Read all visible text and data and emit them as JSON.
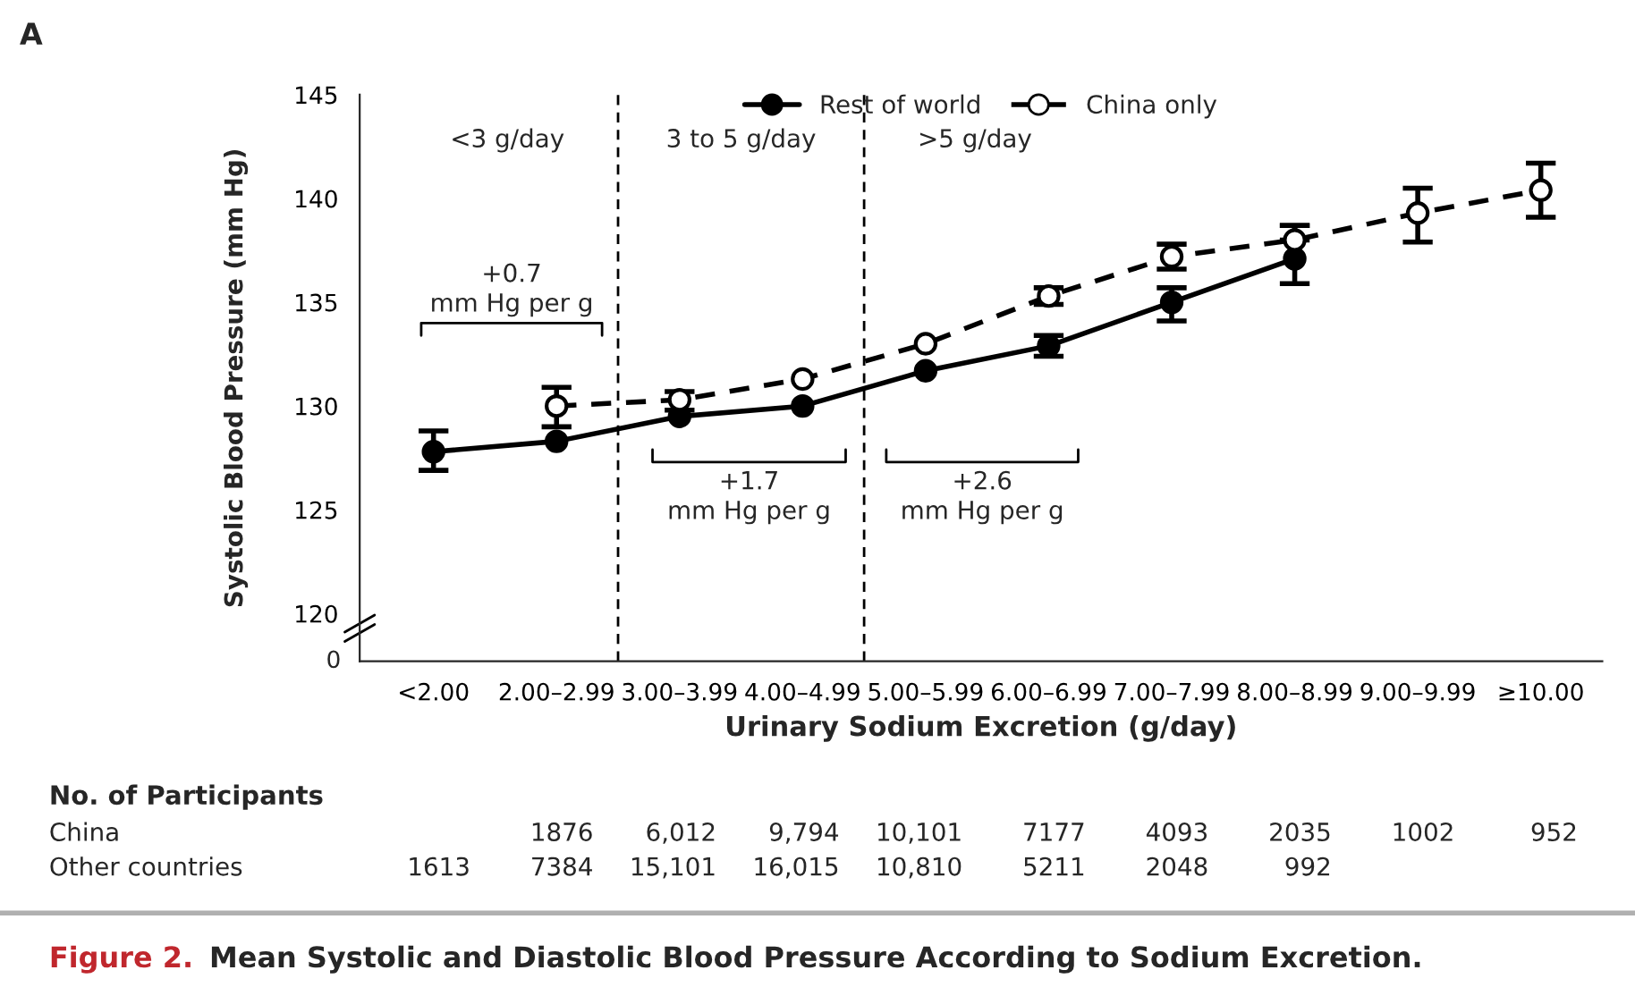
{
  "chart_data": {
    "type": "line",
    "title": "Mean Systolic and Diastolic Blood Pressure According to Sodium Excretion.",
    "xlabel": "Urinary Sodium Excretion (g/day)",
    "ylabel": "Systolic Blood Pressure (mm Hg)",
    "categories": [
      "<2.00",
      "2.00–2.99",
      "3.00–3.99",
      "4.00–4.99",
      "5.00–5.99",
      "6.00–6.99",
      "7.00–7.99",
      "8.00–8.99",
      "9.00–9.99",
      "≥10.00"
    ],
    "series": [
      {
        "name": "Rest of world",
        "color": "#000000",
        "line_style": "solid",
        "marker": "circle",
        "values": [
          127.8,
          128.3,
          129.5,
          130.0,
          131.7,
          132.9,
          135.0,
          137.1,
          null,
          null
        ],
        "errors": [
          [
            126.9,
            128.8
          ],
          null,
          null,
          null,
          null,
          [
            132.4,
            133.4
          ],
          [
            134.1,
            135.7
          ],
          [
            135.9,
            138.7
          ],
          null,
          null
        ]
      },
      {
        "name": "China only",
        "color": "#000000",
        "line_style": "dashed",
        "marker": "circle",
        "values": [
          null,
          130.0,
          130.3,
          131.3,
          133.0,
          135.3,
          137.2,
          138.0,
          139.3,
          140.4
        ],
        "errors": [
          null,
          [
            129.0,
            130.9
          ],
          [
            129.8,
            130.7
          ],
          null,
          null,
          [
            134.9,
            135.7
          ],
          [
            136.6,
            137.8
          ],
          [
            138.0,
            138.7
          ],
          [
            137.9,
            140.5
          ],
          [
            139.1,
            141.7
          ]
        ]
      }
    ],
    "ylim": [
      117.7,
      145
    ],
    "yticks": [
      120,
      125,
      130,
      135,
      140,
      145
    ],
    "legend": "top",
    "grid": false,
    "annotations": [
      "A",
      "Figure 2.",
      "<3 g/day",
      "3 to 5 g/day",
      ">5 g/day",
      "+0.7\nmm Hg per g",
      "+1.7\nmm Hg per g",
      "+2.6\nmm Hg per g",
      "No. of Participants",
      "China",
      "Other countries",
      "1876",
      "6,012",
      "9,794",
      "10,101",
      "7177",
      "4093",
      "2035",
      "1002",
      "952",
      "1613",
      "7384",
      "15,101",
      "16,015",
      "10,810",
      "5211",
      "2048",
      "992",
      "0"
    ]
  }
}
